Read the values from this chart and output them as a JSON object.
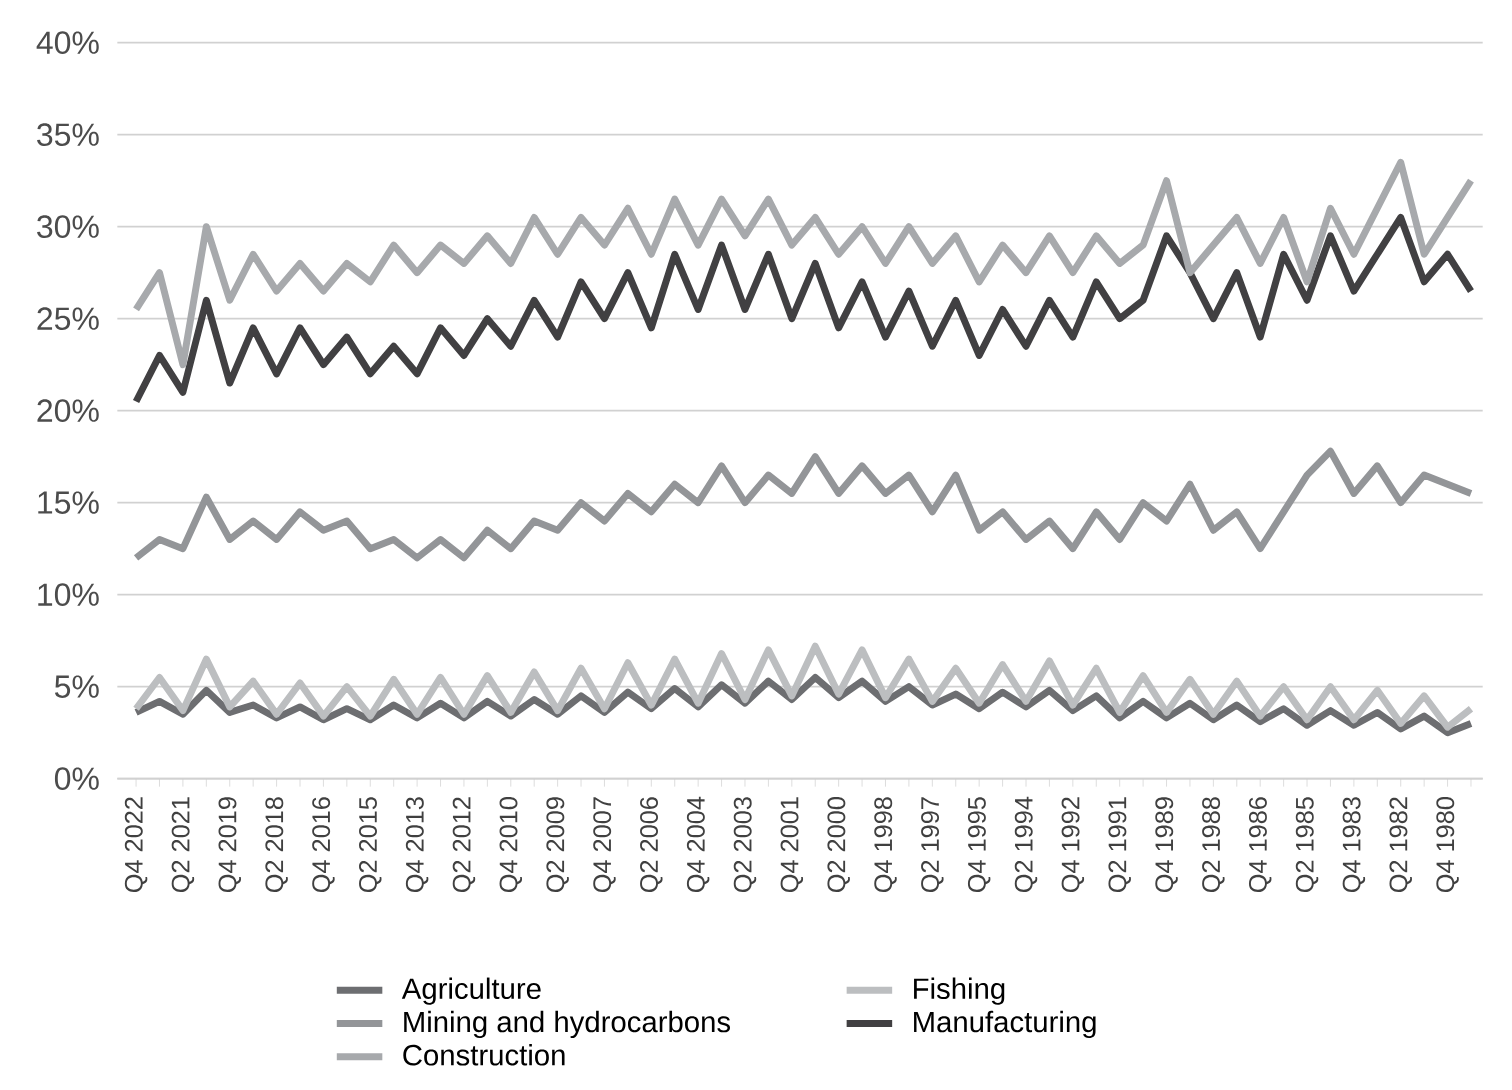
{
  "chart_data": {
    "type": "line",
    "categories": [
      "Q4 2022",
      null,
      "Q2 2021",
      null,
      "Q4 2019",
      null,
      "Q2 2018",
      null,
      "Q4 2016",
      null,
      "Q2 2015",
      null,
      "Q4 2013",
      null,
      "Q2 2012",
      null,
      "Q4 2010",
      null,
      "Q2 2009",
      null,
      "Q4 2007",
      null,
      "Q2 2006",
      null,
      "Q4 2004",
      null,
      "Q2 2003",
      null,
      "Q4 2001",
      null,
      "Q2 2000",
      null,
      "Q4 1998",
      null,
      "Q2 1997",
      null,
      "Q4 1995",
      null,
      "Q2 1994",
      null,
      "Q4 1992",
      null,
      "Q2 1991",
      null,
      "Q4 1989",
      null,
      "Q2 1988",
      null,
      "Q4 1986",
      null,
      "Q2 1985",
      null,
      "Q4 1983",
      null,
      "Q2 1982",
      null,
      "Q4 1980",
      null
    ],
    "series": [
      {
        "name": "Agriculture",
        "color": "#6d6e71",
        "values": [
          3.6,
          4.2,
          3.5,
          4.8,
          3.6,
          4.0,
          3.3,
          3.9,
          3.2,
          3.8,
          3.2,
          4.0,
          3.3,
          4.1,
          3.3,
          4.2,
          3.4,
          4.3,
          3.5,
          4.5,
          3.6,
          4.7,
          3.8,
          4.9,
          3.9,
          5.1,
          4.1,
          5.3,
          4.3,
          5.5,
          4.4,
          5.3,
          4.2,
          5.0,
          4.0,
          4.6,
          3.8,
          4.7,
          3.9,
          4.8,
          3.7,
          4.5,
          3.3,
          4.2,
          3.3,
          4.1,
          3.2,
          4.0,
          3.1,
          3.8,
          2.9,
          3.7,
          2.9,
          3.6,
          2.7,
          3.4,
          2.5,
          3.0
        ]
      },
      {
        "name": "Fishing",
        "color": "#bcbec0",
        "values": [
          3.8,
          5.5,
          3.7,
          6.5,
          3.9,
          5.3,
          3.5,
          5.2,
          3.4,
          5.0,
          3.4,
          5.4,
          3.5,
          5.5,
          3.5,
          5.6,
          3.6,
          5.8,
          3.7,
          6.0,
          3.8,
          6.3,
          4.0,
          6.5,
          4.1,
          6.8,
          4.3,
          7.0,
          4.5,
          7.2,
          4.6,
          7.0,
          4.4,
          6.5,
          4.2,
          6.0,
          4.1,
          6.2,
          4.2,
          6.4,
          4.0,
          6.0,
          3.6,
          5.6,
          3.6,
          5.4,
          3.5,
          5.3,
          3.4,
          5.0,
          3.2,
          5.0,
          3.2,
          4.8,
          3.0,
          4.5,
          2.8,
          3.8
        ]
      },
      {
        "name": "Mining and hydrocarbons",
        "color": "#939598",
        "values": [
          12,
          13,
          12.5,
          15.3,
          13,
          14,
          13,
          14.5,
          13.5,
          14,
          12.5,
          13,
          12,
          13,
          12,
          13.5,
          12.5,
          14,
          13.5,
          15,
          14,
          15.5,
          14.5,
          16,
          15,
          17,
          15,
          16.5,
          15.5,
          17.5,
          15.5,
          17,
          15.5,
          16.5,
          14.5,
          16.5,
          13.5,
          14.5,
          13,
          14,
          12.5,
          14.5,
          13,
          15,
          14,
          16,
          13.5,
          14.5,
          12.5,
          14.5,
          16.5,
          17.8,
          15.5,
          17,
          15,
          16.5,
          16,
          15.5
        ]
      },
      {
        "name": "Manufacturing",
        "color": "#414042",
        "values": [
          20.5,
          23,
          21,
          26,
          21.5,
          24.5,
          22,
          24.5,
          22.5,
          24,
          22,
          23.5,
          22,
          24.5,
          23,
          25,
          23.5,
          26,
          24,
          27,
          25,
          27.5,
          24.5,
          28.5,
          25.5,
          29,
          25.5,
          28.5,
          25,
          28,
          24.5,
          27,
          24,
          26.5,
          23.5,
          26,
          23,
          25.5,
          23.5,
          26,
          24,
          27,
          25,
          26,
          29.5,
          27.5,
          25,
          27.5,
          24,
          28.5,
          26,
          29.5,
          26.5,
          28.5,
          30.5,
          27,
          28.5,
          26.5
        ]
      },
      {
        "name": "Construction",
        "color": "#a7a9ac",
        "values": [
          25.5,
          27.5,
          22.5,
          30,
          26,
          28.5,
          26.5,
          28,
          26.5,
          28,
          27,
          29,
          27.5,
          29,
          28,
          29.5,
          28,
          30.5,
          28.5,
          30.5,
          29,
          31,
          28.5,
          31.5,
          29,
          31.5,
          29.5,
          31.5,
          29,
          30.5,
          28.5,
          30,
          28,
          30,
          28,
          29.5,
          27,
          29,
          27.5,
          29.5,
          27.5,
          29.5,
          28,
          29,
          32.5,
          27.5,
          29,
          30.5,
          28,
          30.5,
          27,
          31,
          28.5,
          31,
          33.5,
          28.5,
          30.5,
          32.5
        ]
      }
    ],
    "ylim": [
      0,
      40
    ],
    "yticks": [
      {
        "value": 0,
        "label": "0%"
      },
      {
        "value": 5,
        "label": "5%"
      },
      {
        "value": 10,
        "label": "10%"
      },
      {
        "value": 15,
        "label": "15%"
      },
      {
        "value": 20,
        "label": "20%"
      },
      {
        "value": 25,
        "label": "25%"
      },
      {
        "value": 30,
        "label": "30%"
      },
      {
        "value": 35,
        "label": "35%"
      },
      {
        "value": 40,
        "label": "40%"
      }
    ],
    "grid": "y",
    "legend": "bottom",
    "marker": "none",
    "line_style": "solid"
  }
}
